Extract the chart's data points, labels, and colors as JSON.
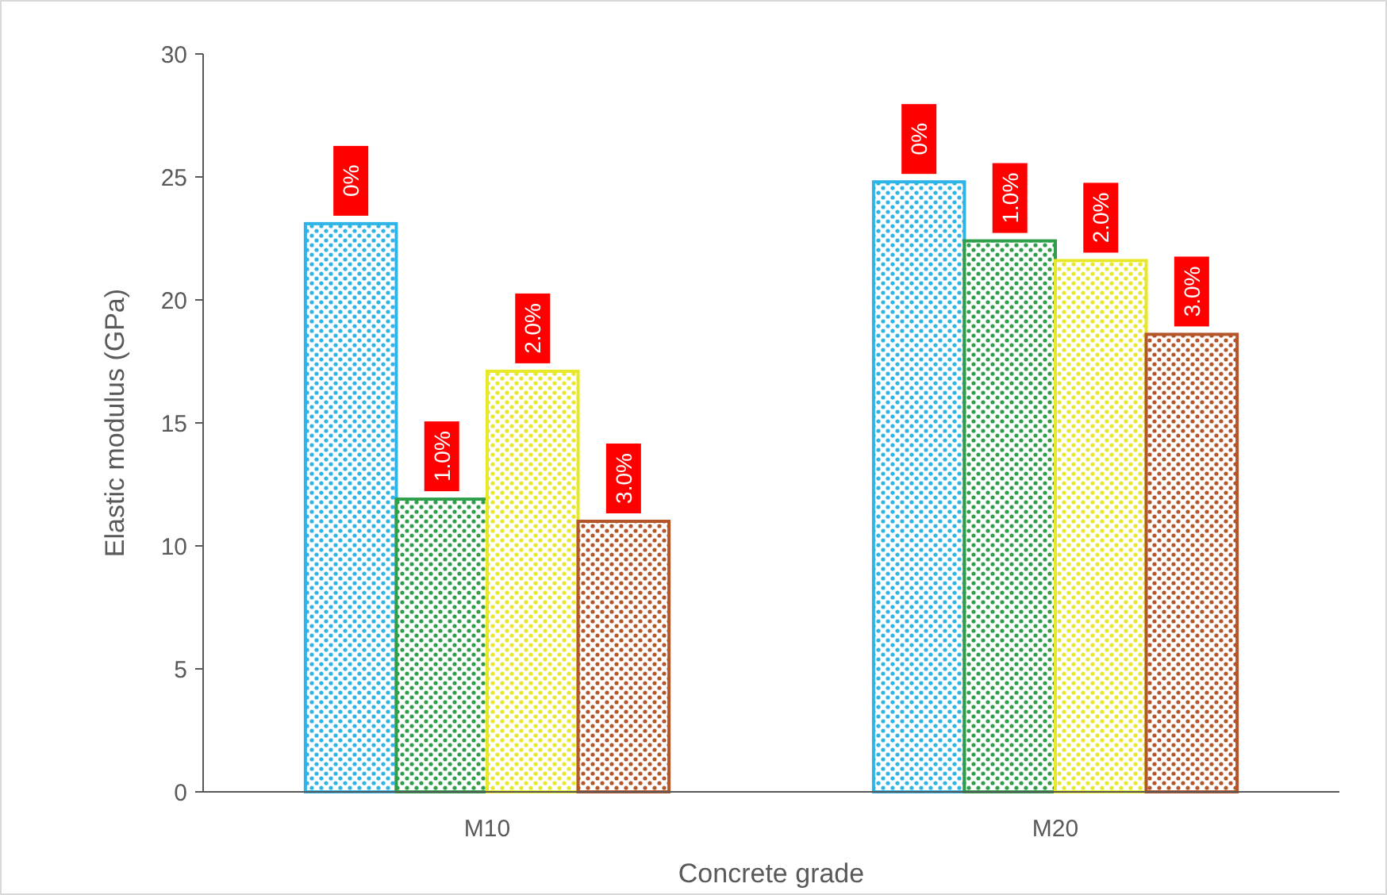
{
  "chart_data": {
    "type": "bar",
    "xlabel": "Concrete grade",
    "ylabel": "Elastic modulus (GPa)",
    "categories": [
      "M10",
      "M20"
    ],
    "ylim": [
      0,
      30
    ],
    "yticks": [
      0,
      5,
      10,
      15,
      20,
      25,
      30
    ],
    "grid": false,
    "series": [
      {
        "name": "0%",
        "color": "#2eb4e6",
        "values": [
          23.1,
          24.8
        ]
      },
      {
        "name": "1.0%",
        "color": "#2e9e4a",
        "values": [
          11.9,
          22.4
        ]
      },
      {
        "name": "2.0%",
        "color": "#e8e82a",
        "values": [
          17.1,
          21.6
        ]
      },
      {
        "name": "3.0%",
        "color": "#b5552a",
        "values": [
          11.0,
          18.6
        ]
      }
    ]
  }
}
